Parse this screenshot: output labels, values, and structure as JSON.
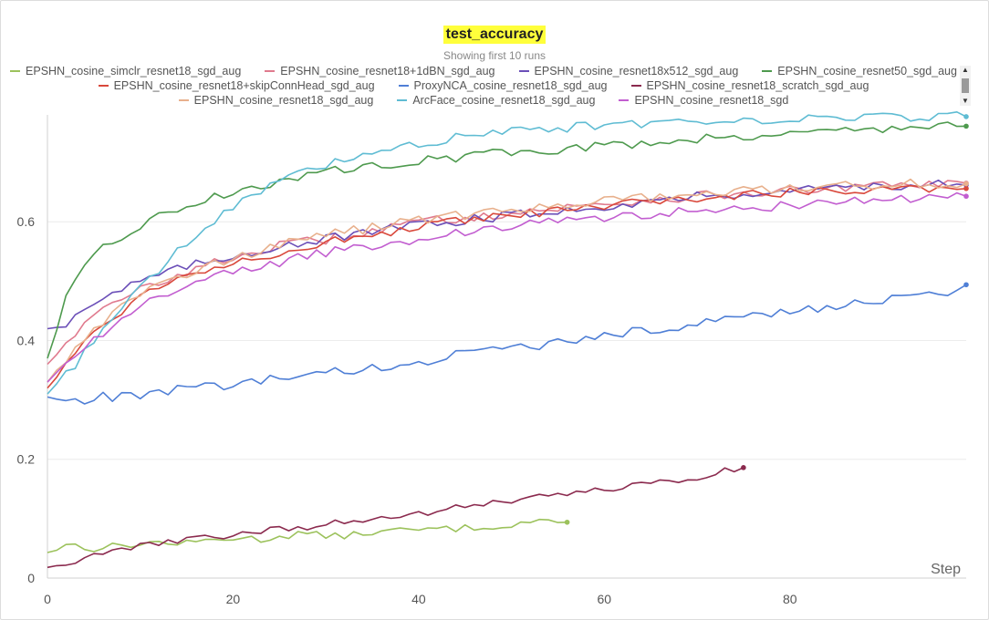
{
  "chart_data": {
    "type": "line",
    "title": "test_accuracy",
    "subtitle": "Showing first 10 runs",
    "xlabel": "Step",
    "ylabel": "",
    "xlim": [
      0,
      99
    ],
    "ylim": [
      0,
      0.78
    ],
    "x_ticks": [
      0,
      20,
      40,
      60,
      80
    ],
    "y_ticks": [
      0,
      0.2,
      0.4,
      0.6
    ],
    "x_tick_labels": [
      "0",
      "20",
      "40",
      "60",
      "80"
    ],
    "y_tick_labels": [
      "0",
      "0.2",
      "0.4",
      "0.6"
    ],
    "grid": true,
    "legend_position": "top",
    "series": [
      {
        "name": "EPSHN_cosine_simclr_resnet18_sgd_aug",
        "color": "#9cc25c",
        "last_step": 56,
        "anchors": [
          [
            0,
            0.043
          ],
          [
            2,
            0.057
          ],
          [
            5,
            0.05
          ],
          [
            8,
            0.055
          ],
          [
            12,
            0.06
          ],
          [
            15,
            0.058
          ],
          [
            18,
            0.065
          ],
          [
            20,
            0.068
          ],
          [
            23,
            0.065
          ],
          [
            27,
            0.075
          ],
          [
            31,
            0.07
          ],
          [
            35,
            0.077
          ],
          [
            38,
            0.08
          ],
          [
            42,
            0.082
          ],
          [
            46,
            0.085
          ],
          [
            50,
            0.09
          ],
          [
            53,
            0.098
          ],
          [
            56,
            0.094
          ]
        ]
      },
      {
        "name": "EPSHN_cosine_resnet18+1dBN_sgd_aug",
        "color": "#e07a8e",
        "last_step": 99,
        "anchors": [
          [
            0,
            0.36
          ],
          [
            2,
            0.4
          ],
          [
            5,
            0.44
          ],
          [
            8,
            0.47
          ],
          [
            12,
            0.5
          ],
          [
            16,
            0.52
          ],
          [
            20,
            0.54
          ],
          [
            25,
            0.56
          ],
          [
            30,
            0.57
          ],
          [
            35,
            0.585
          ],
          [
            40,
            0.6
          ],
          [
            45,
            0.607
          ],
          [
            50,
            0.615
          ],
          [
            55,
            0.622
          ],
          [
            60,
            0.63
          ],
          [
            65,
            0.637
          ],
          [
            70,
            0.643
          ],
          [
            75,
            0.648
          ],
          [
            80,
            0.652
          ],
          [
            85,
            0.656
          ],
          [
            90,
            0.66
          ],
          [
            95,
            0.664
          ],
          [
            99,
            0.665
          ]
        ]
      },
      {
        "name": "EPSHN_cosine_resnet18x512_sgd_aug",
        "color": "#6b4fb8",
        "last_step": 99,
        "anchors": [
          [
            0,
            0.42
          ],
          [
            2,
            0.43
          ],
          [
            4,
            0.455
          ],
          [
            7,
            0.48
          ],
          [
            10,
            0.5
          ],
          [
            14,
            0.52
          ],
          [
            18,
            0.535
          ],
          [
            22,
            0.55
          ],
          [
            27,
            0.565
          ],
          [
            32,
            0.575
          ],
          [
            37,
            0.588
          ],
          [
            42,
            0.598
          ],
          [
            47,
            0.606
          ],
          [
            52,
            0.614
          ],
          [
            57,
            0.622
          ],
          [
            62,
            0.63
          ],
          [
            67,
            0.638
          ],
          [
            72,
            0.645
          ],
          [
            77,
            0.65
          ],
          [
            82,
            0.655
          ],
          [
            87,
            0.66
          ],
          [
            92,
            0.662
          ],
          [
            99,
            0.662
          ]
        ]
      },
      {
        "name": "EPSHN_cosine_resnet50_sgd_aug",
        "color": "#4e9a4e",
        "last_step": 99,
        "anchors": [
          [
            0,
            0.37
          ],
          [
            2,
            0.47
          ],
          [
            4,
            0.52
          ],
          [
            6,
            0.555
          ],
          [
            8,
            0.575
          ],
          [
            10,
            0.595
          ],
          [
            13,
            0.615
          ],
          [
            16,
            0.632
          ],
          [
            20,
            0.65
          ],
          [
            24,
            0.665
          ],
          [
            28,
            0.678
          ],
          [
            32,
            0.688
          ],
          [
            36,
            0.697
          ],
          [
            40,
            0.703
          ],
          [
            45,
            0.71
          ],
          [
            50,
            0.717
          ],
          [
            55,
            0.722
          ],
          [
            60,
            0.728
          ],
          [
            65,
            0.734
          ],
          [
            70,
            0.74
          ],
          [
            75,
            0.745
          ],
          [
            80,
            0.75
          ],
          [
            85,
            0.754
          ],
          [
            90,
            0.757
          ],
          [
            95,
            0.76
          ],
          [
            99,
            0.761
          ]
        ]
      },
      {
        "name": "EPSHN_cosine_resnet18+skipConnHead_sgd_aug",
        "color": "#d9483b",
        "last_step": 99,
        "anchors": [
          [
            0,
            0.32
          ],
          [
            2,
            0.36
          ],
          [
            4,
            0.4
          ],
          [
            7,
            0.44
          ],
          [
            10,
            0.475
          ],
          [
            14,
            0.505
          ],
          [
            18,
            0.525
          ],
          [
            22,
            0.54
          ],
          [
            27,
            0.555
          ],
          [
            32,
            0.57
          ],
          [
            37,
            0.583
          ],
          [
            42,
            0.595
          ],
          [
            47,
            0.605
          ],
          [
            52,
            0.613
          ],
          [
            57,
            0.621
          ],
          [
            62,
            0.629
          ],
          [
            67,
            0.636
          ],
          [
            72,
            0.642
          ],
          [
            77,
            0.647
          ],
          [
            82,
            0.651
          ],
          [
            87,
            0.655
          ],
          [
            92,
            0.658
          ],
          [
            99,
            0.656
          ]
        ]
      },
      {
        "name": "ProxyNCA_cosine_resnet18_sgd_aug",
        "color": "#4f7fd6",
        "last_step": 99,
        "anchors": [
          [
            0,
            0.305
          ],
          [
            3,
            0.297
          ],
          [
            6,
            0.305
          ],
          [
            10,
            0.307
          ],
          [
            14,
            0.318
          ],
          [
            18,
            0.322
          ],
          [
            22,
            0.33
          ],
          [
            26,
            0.338
          ],
          [
            30,
            0.345
          ],
          [
            34,
            0.352
          ],
          [
            38,
            0.358
          ],
          [
            42,
            0.37
          ],
          [
            46,
            0.38
          ],
          [
            50,
            0.385
          ],
          [
            54,
            0.395
          ],
          [
            58,
            0.405
          ],
          [
            62,
            0.413
          ],
          [
            66,
            0.42
          ],
          [
            70,
            0.43
          ],
          [
            74,
            0.438
          ],
          [
            78,
            0.445
          ],
          [
            82,
            0.453
          ],
          [
            86,
            0.46
          ],
          [
            90,
            0.467
          ],
          [
            94,
            0.474
          ],
          [
            97,
            0.482
          ],
          [
            99,
            0.494
          ]
        ]
      },
      {
        "name": "EPSHN_cosine_resnet18_scratch_sgd_aug",
        "color": "#8b2a4e",
        "last_step": 75,
        "anchors": [
          [
            0,
            0.018
          ],
          [
            3,
            0.028
          ],
          [
            6,
            0.04
          ],
          [
            10,
            0.055
          ],
          [
            14,
            0.062
          ],
          [
            18,
            0.07
          ],
          [
            22,
            0.077
          ],
          [
            26,
            0.084
          ],
          [
            30,
            0.09
          ],
          [
            34,
            0.098
          ],
          [
            38,
            0.105
          ],
          [
            42,
            0.113
          ],
          [
            46,
            0.122
          ],
          [
            50,
            0.13
          ],
          [
            54,
            0.138
          ],
          [
            58,
            0.146
          ],
          [
            62,
            0.153
          ],
          [
            66,
            0.16
          ],
          [
            70,
            0.168
          ],
          [
            73,
            0.18
          ],
          [
            75,
            0.186
          ]
        ]
      },
      {
        "name": "EPSHN_cosine_resnet18_sgd_aug",
        "color": "#e8b08c",
        "last_step": 99,
        "anchors": [
          [
            0,
            0.33
          ],
          [
            2,
            0.37
          ],
          [
            5,
            0.42
          ],
          [
            8,
            0.46
          ],
          [
            12,
            0.495
          ],
          [
            16,
            0.52
          ],
          [
            20,
            0.54
          ],
          [
            25,
            0.56
          ],
          [
            30,
            0.578
          ],
          [
            35,
            0.59
          ],
          [
            40,
            0.602
          ],
          [
            45,
            0.612
          ],
          [
            50,
            0.62
          ],
          [
            55,
            0.628
          ],
          [
            60,
            0.635
          ],
          [
            65,
            0.641
          ],
          [
            70,
            0.647
          ],
          [
            75,
            0.652
          ],
          [
            80,
            0.656
          ],
          [
            85,
            0.66
          ],
          [
            90,
            0.663
          ],
          [
            95,
            0.665
          ],
          [
            99,
            0.664
          ]
        ]
      },
      {
        "name": "ArcFace_cosine_resnet18_sgd_aug",
        "color": "#5fbcd3",
        "last_step": 99,
        "anchors": [
          [
            0,
            0.31
          ],
          [
            3,
            0.36
          ],
          [
            6,
            0.42
          ],
          [
            9,
            0.47
          ],
          [
            12,
            0.52
          ],
          [
            15,
            0.565
          ],
          [
            18,
            0.6
          ],
          [
            21,
            0.635
          ],
          [
            24,
            0.66
          ],
          [
            27,
            0.68
          ],
          [
            30,
            0.695
          ],
          [
            34,
            0.71
          ],
          [
            38,
            0.725
          ],
          [
            42,
            0.737
          ],
          [
            46,
            0.746
          ],
          [
            50,
            0.752
          ],
          [
            55,
            0.758
          ],
          [
            60,
            0.763
          ],
          [
            65,
            0.767
          ],
          [
            70,
            0.77
          ],
          [
            75,
            0.772
          ],
          [
            80,
            0.774
          ],
          [
            85,
            0.775
          ],
          [
            90,
            0.776
          ],
          [
            95,
            0.777
          ],
          [
            99,
            0.777
          ]
        ]
      },
      {
        "name": "EPSHN_cosine_resnet18_sgd",
        "color": "#c25ed0",
        "last_step": 99,
        "anchors": [
          [
            0,
            0.33
          ],
          [
            2,
            0.36
          ],
          [
            5,
            0.4
          ],
          [
            8,
            0.44
          ],
          [
            12,
            0.475
          ],
          [
            16,
            0.5
          ],
          [
            20,
            0.515
          ],
          [
            25,
            0.532
          ],
          [
            30,
            0.548
          ],
          [
            35,
            0.56
          ],
          [
            40,
            0.572
          ],
          [
            45,
            0.582
          ],
          [
            50,
            0.592
          ],
          [
            55,
            0.6
          ],
          [
            60,
            0.607
          ],
          [
            65,
            0.613
          ],
          [
            70,
            0.618
          ],
          [
            75,
            0.623
          ],
          [
            80,
            0.628
          ],
          [
            85,
            0.632
          ],
          [
            90,
            0.636
          ],
          [
            95,
            0.64
          ],
          [
            99,
            0.643
          ]
        ]
      }
    ]
  }
}
